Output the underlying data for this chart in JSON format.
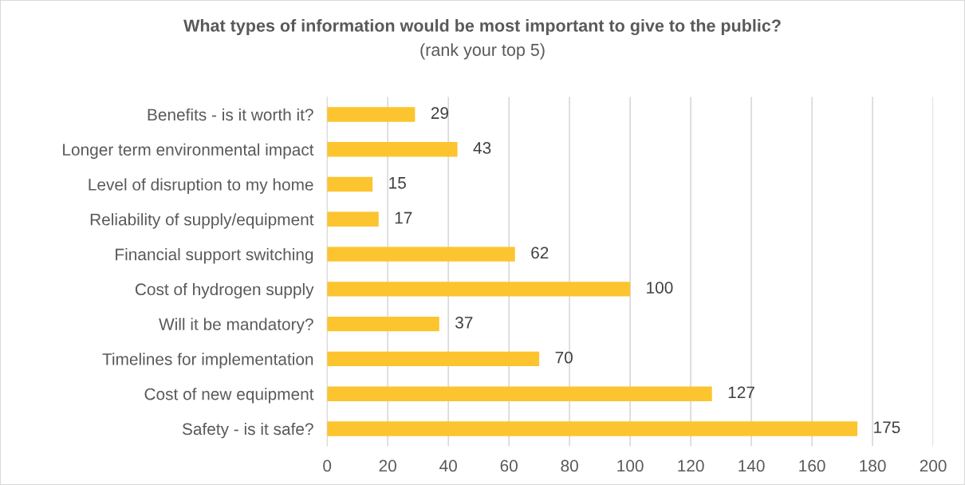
{
  "chart_data": {
    "type": "bar",
    "orientation": "horizontal",
    "title": "What types of information would be most important to give to the public?",
    "subtitle": "(rank your top 5)",
    "categories": [
      "Benefits - is it worth it?",
      "Longer term environmental impact",
      "Level of disruption to my home",
      "Reliability of supply/equipment",
      "Financial support switching",
      "Cost of hydrogen supply",
      "Will it be mandatory?",
      "Timelines for implementation",
      "Cost of new equipment",
      "Safety - is it safe?"
    ],
    "values": [
      29,
      43,
      15,
      17,
      62,
      100,
      37,
      70,
      127,
      175
    ],
    "color": "#fcc42e",
    "xlim": [
      0,
      200
    ],
    "xticks": [
      0,
      20,
      40,
      60,
      80,
      100,
      120,
      140,
      160,
      180,
      200
    ],
    "grid": "x",
    "data_labels": true
  }
}
